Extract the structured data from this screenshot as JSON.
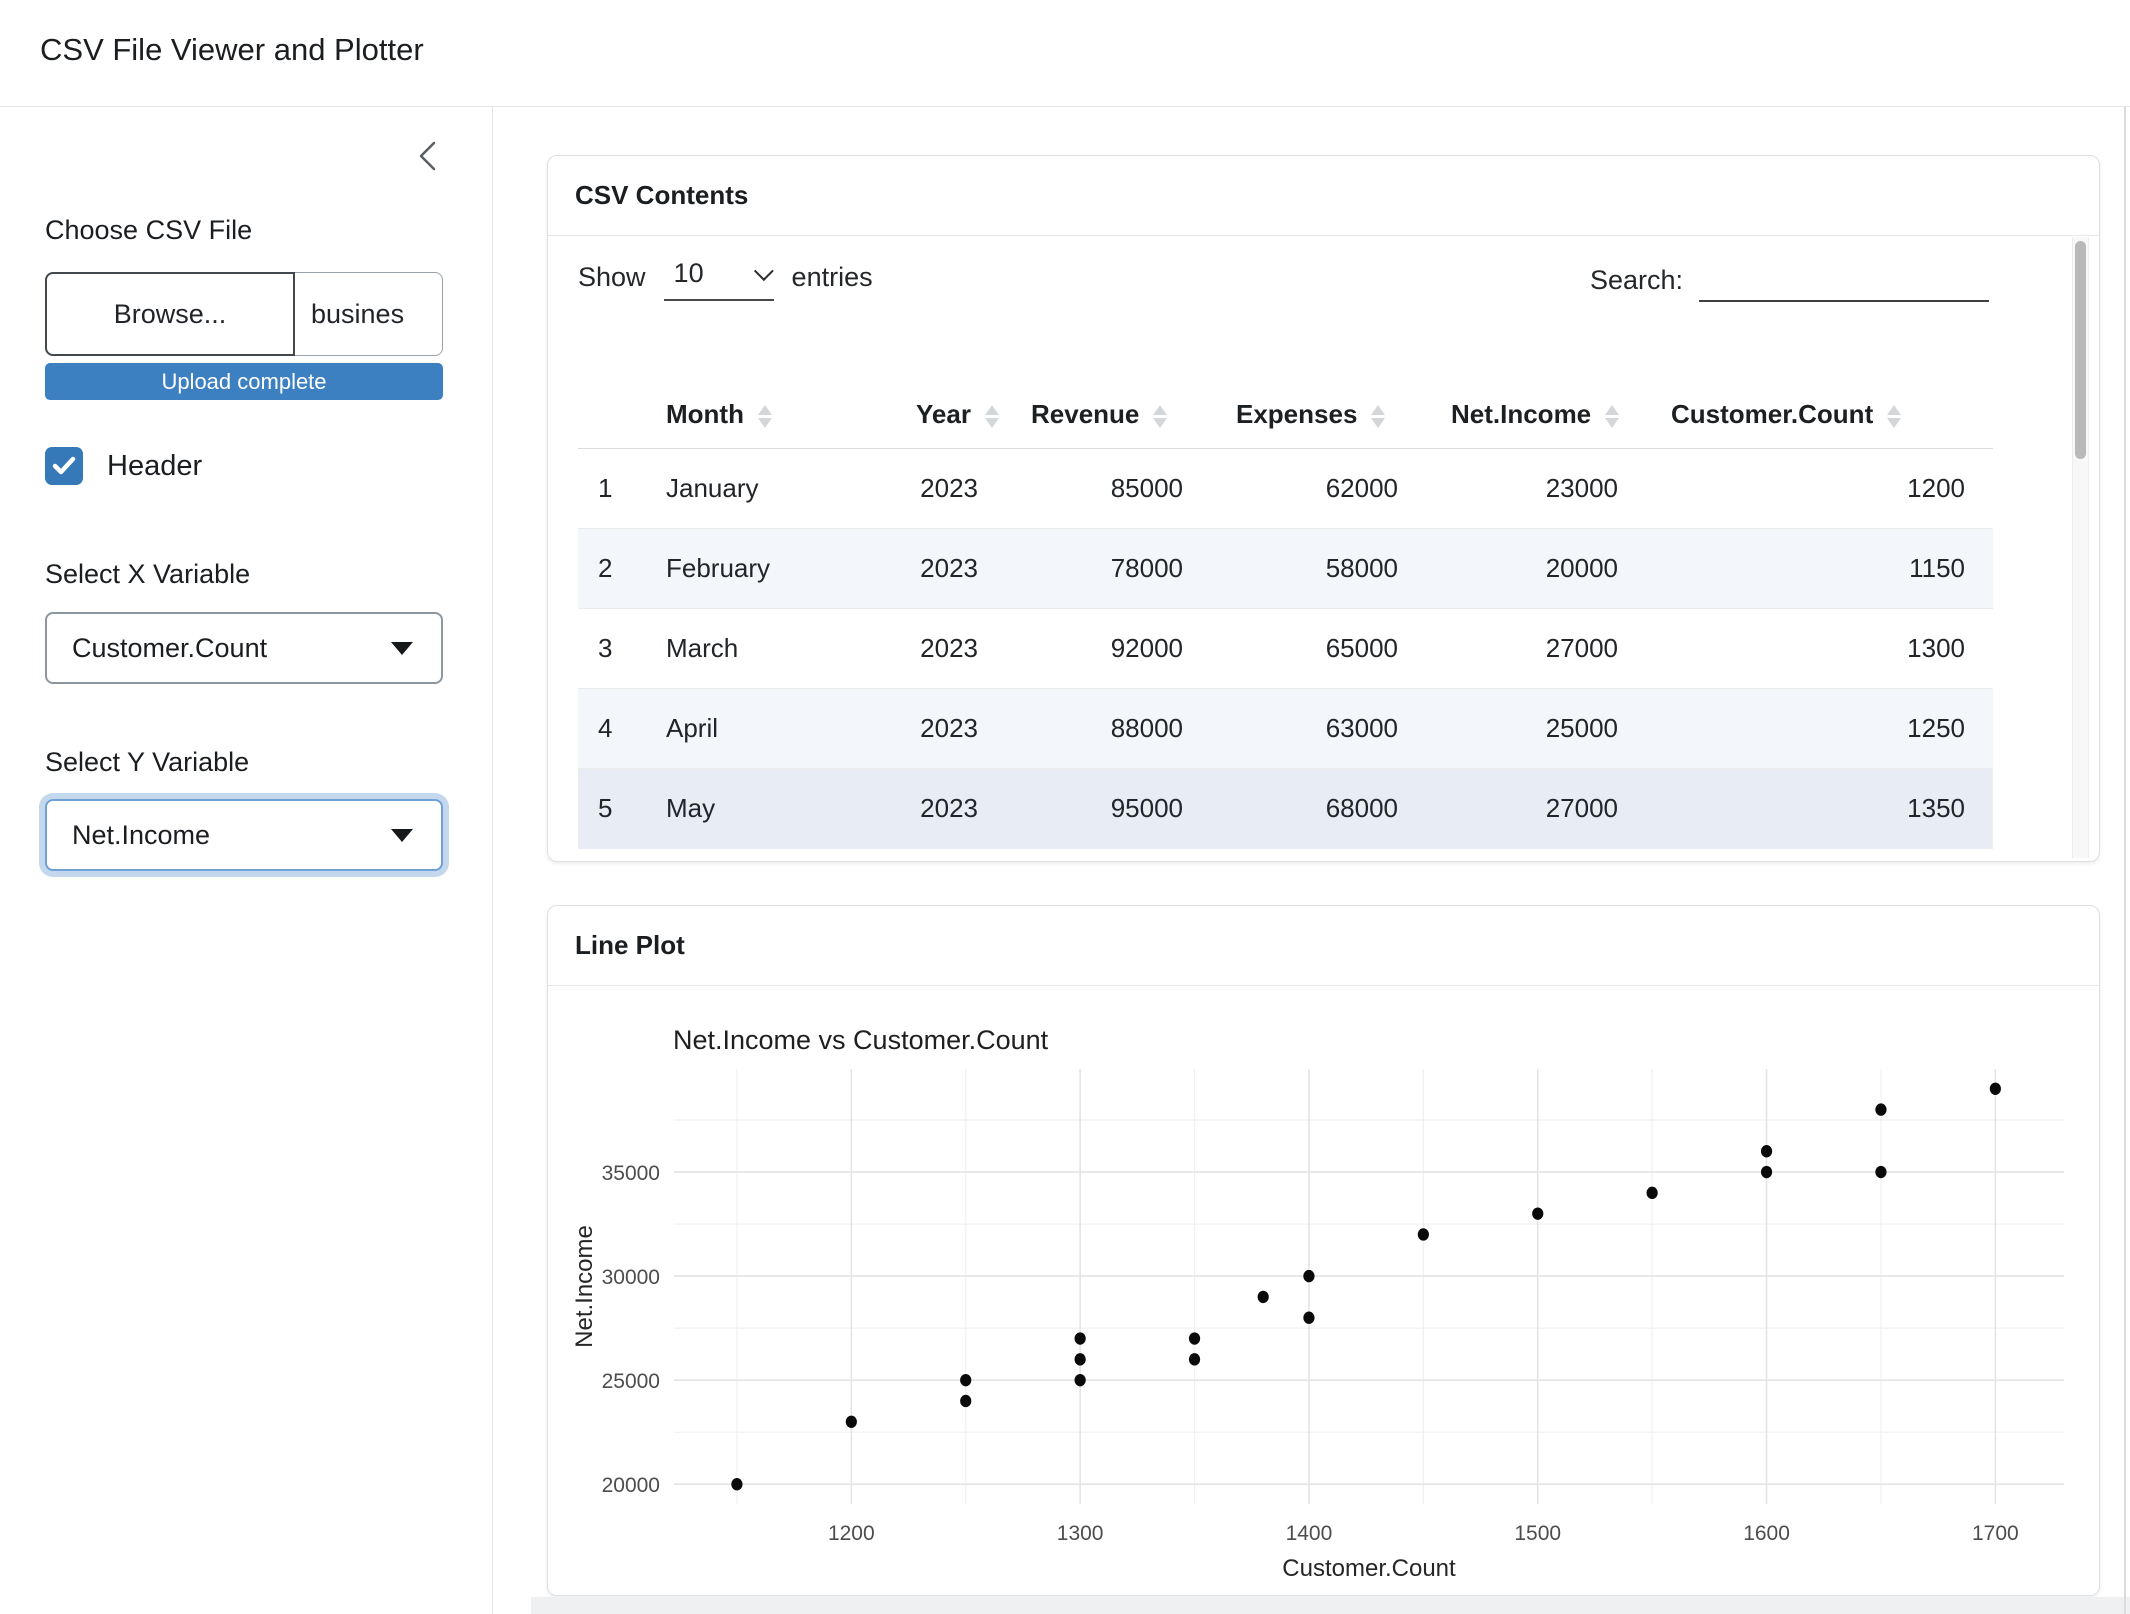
{
  "app": {
    "title": "CSV File Viewer and Plotter"
  },
  "sidebar": {
    "file_input": {
      "label": "Choose CSV File",
      "browse_label": "Browse...",
      "filename": "busines",
      "progress": "Upload complete"
    },
    "header_checkbox": {
      "label": "Header",
      "checked": true
    },
    "x_select": {
      "label": "Select X Variable",
      "value": "Customer.Count"
    },
    "y_select": {
      "label": "Select Y Variable",
      "value": "Net.Income"
    }
  },
  "csv_card": {
    "title": "CSV Contents",
    "show_label": "Show",
    "page_size": "10",
    "entries_label": "entries",
    "search_label": "Search:",
    "search_value": "",
    "columns": [
      "Month",
      "Year",
      "Revenue",
      "Expenses",
      "Net.Income",
      "Customer.Count"
    ],
    "rows": [
      [
        "1",
        "January",
        "2023",
        "85000",
        "62000",
        "23000",
        "1200"
      ],
      [
        "2",
        "February",
        "2023",
        "78000",
        "58000",
        "20000",
        "1150"
      ],
      [
        "3",
        "March",
        "2023",
        "92000",
        "65000",
        "27000",
        "1300"
      ],
      [
        "4",
        "April",
        "2023",
        "88000",
        "63000",
        "25000",
        "1250"
      ],
      [
        "5",
        "May",
        "2023",
        "95000",
        "68000",
        "27000",
        "1350"
      ]
    ]
  },
  "plot_card": {
    "title": "Line Plot"
  },
  "chart_data": {
    "type": "scatter",
    "title": "Net.Income vs Customer.Count",
    "xlabel": "Customer.Count",
    "ylabel": "Net.Income",
    "x": [
      1150,
      1200,
      1250,
      1250,
      1300,
      1300,
      1300,
      1350,
      1350,
      1380,
      1400,
      1400,
      1450,
      1500,
      1550,
      1600,
      1600,
      1650,
      1650,
      1700
    ],
    "y": [
      20000,
      23000,
      24000,
      25000,
      25000,
      26000,
      27000,
      26000,
      27000,
      29000,
      28000,
      30000,
      32000,
      33000,
      34000,
      35000,
      36000,
      35000,
      38000,
      39000
    ],
    "xlim": [
      1122.5,
      1730
    ],
    "ylim": [
      19050,
      39950
    ],
    "x_ticks": [
      1200,
      1300,
      1400,
      1500,
      1600,
      1700
    ],
    "x_minor_ticks": [
      1150,
      1250,
      1350,
      1450,
      1550,
      1650
    ],
    "y_ticks": [
      20000,
      25000,
      30000,
      35000
    ],
    "y_minor_ticks": [
      22500,
      27500,
      32500,
      37500
    ],
    "grid": "major+minor",
    "legend": "none",
    "point_color": "#0a0a0a"
  },
  "colors": {
    "accent_blue": "#3d80c2",
    "checkbox_blue": "#3579b8",
    "row_stripe": "#f3f6fa",
    "row_hover": "#e8edf5",
    "grid_major": "#e4e4e4",
    "grid_minor": "#f0f0f0"
  }
}
